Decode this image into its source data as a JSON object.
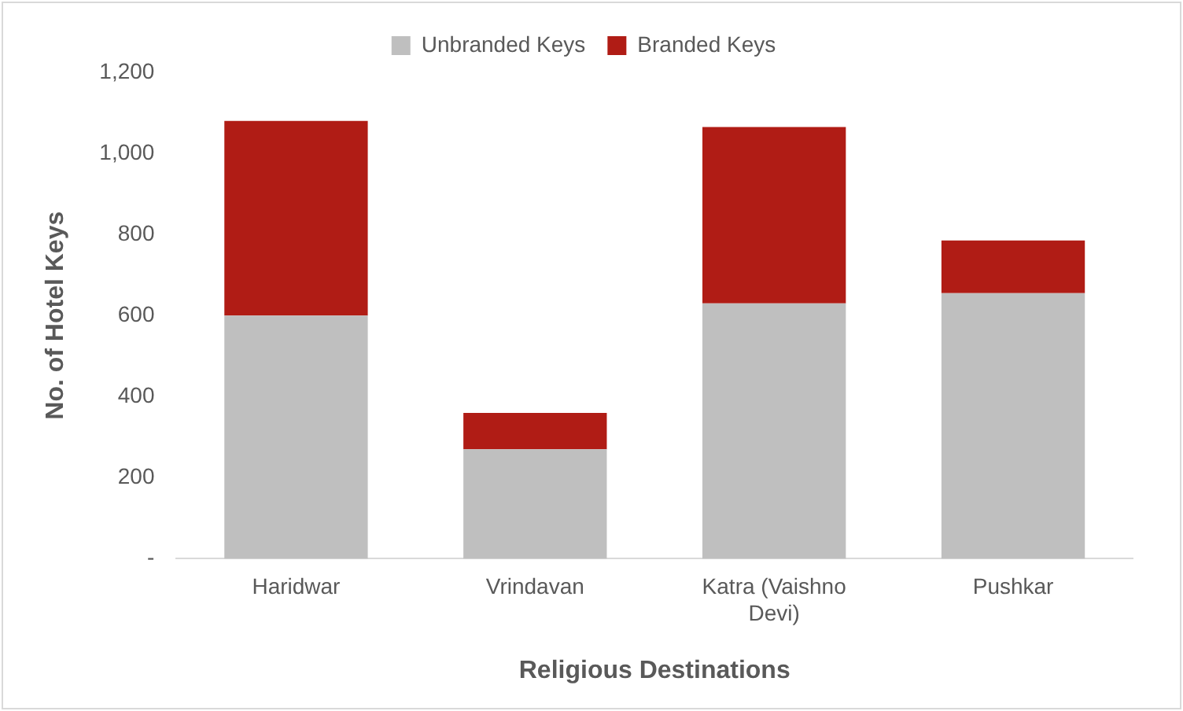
{
  "chart_data": {
    "type": "bar",
    "stacked": true,
    "xlabel": "Religious Destinations",
    "ylabel": "No. of Hotel Keys",
    "categories": [
      "Haridwar",
      "Vrindavan",
      "Katra (Vaishno Devi)",
      "Pushkar"
    ],
    "series": [
      {
        "name": "Unbranded Keys",
        "color": "#bfbfbf",
        "values": [
          600,
          270,
          630,
          655
        ]
      },
      {
        "name": "Branded Keys",
        "color": "#b01c15",
        "values": [
          480,
          90,
          435,
          130
        ]
      }
    ],
    "ylim": [
      0,
      1200
    ],
    "yticks": [
      {
        "value": 0,
        "label": "-"
      },
      {
        "value": 200,
        "label": "200"
      },
      {
        "value": 400,
        "label": "400"
      },
      {
        "value": 600,
        "label": "600"
      },
      {
        "value": 800,
        "label": "800"
      },
      {
        "value": 1000,
        "label": "1,000"
      },
      {
        "value": 1200,
        "label": "1,200"
      }
    ],
    "grid": false,
    "legend": "top"
  }
}
